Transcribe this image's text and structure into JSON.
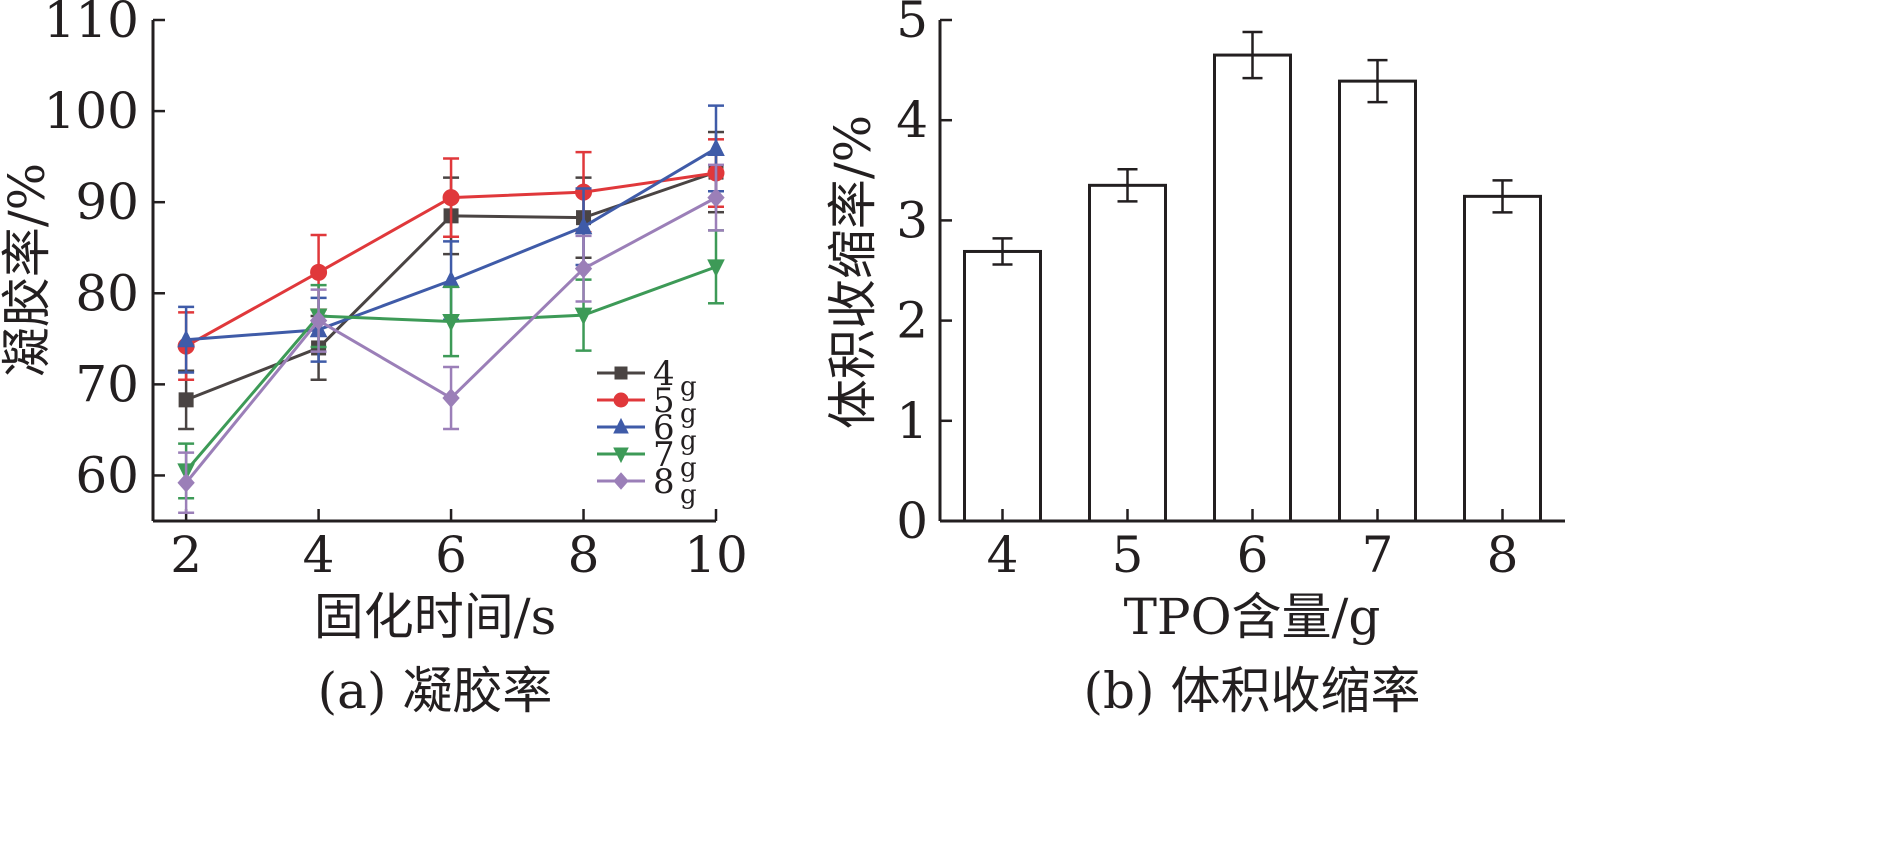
{
  "chart_data": [
    {
      "type": "line",
      "caption": "(a) 凝胶率",
      "xlabel": "固化时间/s",
      "ylabel": "凝胶率/%",
      "xlim": [
        1.5,
        10
      ],
      "ylim": [
        55,
        110
      ],
      "xticks": [
        2,
        4,
        6,
        8,
        10
      ],
      "yticks": [
        60,
        70,
        80,
        90,
        100,
        110
      ],
      "x": [
        2,
        4,
        6,
        8,
        10
      ],
      "legend_position": "lower-right",
      "series": [
        {
          "name": "4",
          "unit": "g",
          "color": "#4a4443",
          "marker": "square",
          "values": [
            68.3,
            74.0,
            88.5,
            88.3,
            93.3
          ],
          "errors": [
            3.2,
            3.5,
            4.2,
            4.4,
            4.4
          ]
        },
        {
          "name": "5",
          "unit": "g",
          "color": "#e0383b",
          "marker": "circle",
          "values": [
            74.2,
            82.3,
            90.5,
            91.1,
            93.2
          ],
          "errors": [
            3.7,
            4.1,
            4.3,
            4.4,
            3.7
          ]
        },
        {
          "name": "6",
          "unit": "g",
          "color": "#3f5ba8",
          "marker": "triangle-up",
          "values": [
            74.9,
            76.0,
            81.4,
            87.3,
            95.9
          ],
          "errors": [
            3.6,
            3.5,
            4.3,
            4.2,
            4.7
          ]
        },
        {
          "name": "7",
          "unit": "g",
          "color": "#3d9a57",
          "marker": "triangle-down",
          "values": [
            60.5,
            77.5,
            76.9,
            77.6,
            82.9
          ],
          "errors": [
            3.0,
            3.4,
            3.8,
            3.9,
            4.0
          ]
        },
        {
          "name": "8",
          "unit": "g",
          "color": "#9b7fb8",
          "marker": "diamond",
          "values": [
            59.2,
            77.0,
            68.5,
            82.7,
            90.5
          ],
          "errors": [
            3.3,
            3.4,
            3.4,
            3.6,
            3.6
          ]
        }
      ]
    },
    {
      "type": "bar",
      "caption": "(b) 体积收缩率",
      "xlabel": "TPO含量/g",
      "ylabel": "体积收缩率/%",
      "ylim": [
        0,
        5
      ],
      "yticks": [
        0,
        1,
        2,
        3,
        4,
        5
      ],
      "categories": [
        "4",
        "5",
        "6",
        "7",
        "8"
      ],
      "values": [
        2.69,
        3.35,
        4.65,
        4.39,
        3.24
      ],
      "errors": [
        0.13,
        0.16,
        0.23,
        0.21,
        0.16
      ],
      "bar_fill": "#ffffff",
      "bar_stroke": "#231f20"
    }
  ]
}
